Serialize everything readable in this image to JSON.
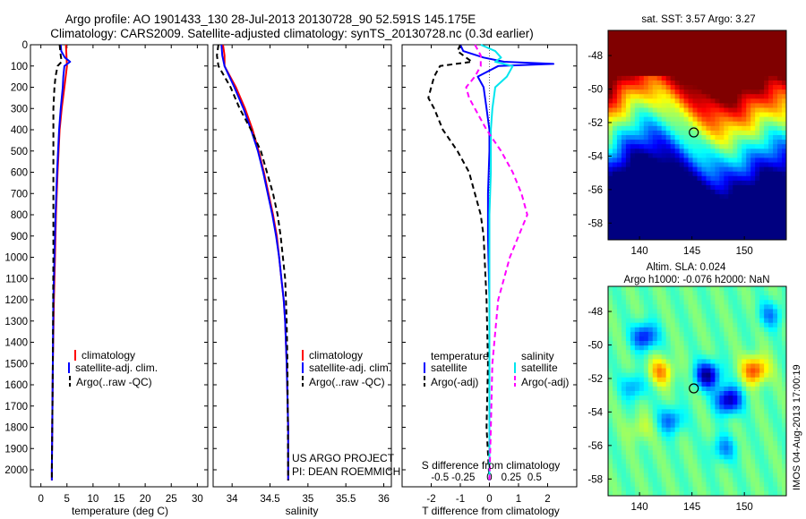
{
  "header": {
    "title_line1": "Argo profile: AO 1901433_130 28-Jul-2013 20130728_90 52.591S 145.175E",
    "title_line2": "Climatology: CARS2009. Satellite-adjusted climatology: synTS_20130728.nc (0.3d earlier)"
  },
  "colors": {
    "climatology": "#ff0000",
    "satellite": "#0000ff",
    "argo": "#000000",
    "salinity_satellite": "#00e5ee",
    "salinity_argo": "#ff00ff"
  },
  "chart_data": [
    {
      "type": "line",
      "xlabel": "temperature (deg C)",
      "xlim": [
        -2,
        32
      ],
      "ylim": [
        2080,
        0
      ],
      "xticks": [
        0,
        5,
        10,
        15,
        20,
        25,
        30
      ],
      "yticks": [
        0,
        100,
        200,
        300,
        400,
        500,
        600,
        700,
        800,
        900,
        1000,
        1100,
        1200,
        1300,
        1400,
        1500,
        1600,
        1700,
        1800,
        1900,
        2000
      ],
      "legend": [
        "climatology",
        "satellite-adj. clim.",
        "Argo(..raw -QC)"
      ],
      "series": [
        {
          "name": "climatology",
          "color": "#ff0000",
          "style": "solid",
          "depth": [
            0,
            50,
            100,
            200,
            300,
            400,
            600,
            800,
            1000,
            1200,
            1500,
            2000,
            2050
          ],
          "values": [
            4.8,
            4.9,
            5.0,
            4.5,
            4.0,
            3.6,
            3.2,
            2.9,
            2.7,
            2.5,
            2.3,
            2.1,
            2.1
          ]
        },
        {
          "name": "satellite-adj. clim.",
          "color": "#0000ff",
          "style": "solid",
          "depth": [
            0,
            30,
            60,
            80,
            100,
            150,
            200,
            300,
            400,
            600,
            800,
            1000,
            1200,
            1500,
            2000,
            2050
          ],
          "values": [
            3.8,
            3.9,
            4.6,
            5.6,
            4.5,
            4.3,
            4.2,
            3.8,
            3.5,
            3.1,
            2.8,
            2.6,
            2.4,
            2.3,
            2.1,
            2.1
          ]
        },
        {
          "name": "Argo(..raw -QC)",
          "color": "#000000",
          "style": "dash",
          "depth": [
            0,
            50,
            80,
            100,
            150,
            200,
            300,
            400,
            600,
            800,
            1000,
            1500,
            2000,
            2050
          ],
          "values": [
            3.6,
            3.8,
            4.0,
            3.2,
            2.8,
            2.6,
            2.4,
            2.4,
            2.4,
            2.4,
            2.4,
            2.3,
            2.1,
            2.1
          ]
        }
      ]
    },
    {
      "type": "line",
      "xlabel": "salinity",
      "xlim": [
        33.75,
        36.1
      ],
      "ylim": [
        2080,
        0
      ],
      "xticks": [
        34,
        34.5,
        35,
        35.5,
        36
      ],
      "legend": [
        "climatology",
        "satellite-adj. clim.",
        "Argo(..raw -QC)"
      ],
      "annotation": [
        "US ARGO PROJECT",
        "PI: DEAN ROEMMICH"
      ],
      "series": [
        {
          "name": "climatology",
          "color": "#ff0000",
          "style": "solid",
          "depth": [
            0,
            50,
            100,
            200,
            300,
            400,
            500,
            600,
            700,
            800,
            900,
            1000,
            1100,
            1200,
            1300,
            1500,
            1800,
            2050
          ],
          "values": [
            33.88,
            33.9,
            33.9,
            34.05,
            34.17,
            34.27,
            34.35,
            34.42,
            34.48,
            34.54,
            34.59,
            34.62,
            34.65,
            34.68,
            34.7,
            34.72,
            34.74,
            34.74
          ]
        },
        {
          "name": "satellite-adj. clim.",
          "color": "#0000ff",
          "style": "solid",
          "depth": [
            0,
            50,
            100,
            200,
            300,
            400,
            500,
            600,
            700,
            800,
            900,
            1000,
            1100,
            1200,
            1300,
            1500,
            1800,
            2050
          ],
          "values": [
            33.86,
            33.87,
            33.9,
            34.03,
            34.15,
            34.25,
            34.34,
            34.41,
            34.47,
            34.53,
            34.58,
            34.62,
            34.65,
            34.68,
            34.7,
            34.72,
            34.74,
            34.74
          ]
        },
        {
          "name": "Argo(..raw -QC)",
          "color": "#000000",
          "style": "dash",
          "depth": [
            0,
            50,
            100,
            150,
            200,
            300,
            400,
            500,
            600,
            700,
            800,
            900,
            1000,
            1100,
            1200,
            1300,
            1500,
            2050
          ],
          "values": [
            33.82,
            33.8,
            33.82,
            33.9,
            33.98,
            34.1,
            34.25,
            34.38,
            34.46,
            34.54,
            34.6,
            34.64,
            34.67,
            34.7,
            34.71,
            34.72,
            34.73,
            34.74
          ]
        }
      ]
    },
    {
      "type": "line",
      "xlabel": "T difference from climatology",
      "xlabel_top": "S difference from climatology",
      "xlim": [
        -3,
        3
      ],
      "ylim": [
        2080,
        0
      ],
      "xticks": [
        -2,
        -1,
        0,
        1,
        2
      ],
      "sticks": [
        {
          "x": -1.7,
          "label": "-0.5"
        },
        {
          "x": -0.9,
          "label": "-0.25"
        },
        {
          "x": 0.0,
          "label": "0"
        },
        {
          "x": 0.75,
          "label": "0.25"
        },
        {
          "x": 1.55,
          "label": "0.5"
        }
      ],
      "legend_temperature": {
        "title": "temperature",
        "items": [
          "satellite",
          "Argo(-adj)"
        ]
      },
      "legend_salinity": {
        "title": "salinity",
        "items": [
          "satellite",
          "Argo(-adj)"
        ]
      },
      "series": [
        {
          "name": "T satellite",
          "color": "#0000ff",
          "style": "solid",
          "depth": [
            0,
            30,
            60,
            80,
            90,
            100,
            150,
            200,
            300,
            400,
            500,
            700,
            900,
            1200,
            1500,
            2050
          ],
          "values": [
            -1.0,
            -0.9,
            -0.2,
            0.5,
            2.2,
            0.3,
            -0.4,
            -0.2,
            -0.1,
            0.0,
            0.0,
            -0.05,
            -0.05,
            0.0,
            0.0,
            0.0
          ]
        },
        {
          "name": "T Argo(-adj)",
          "color": "#000000",
          "style": "dash",
          "depth": [
            0,
            30,
            60,
            80,
            100,
            150,
            200,
            250,
            300,
            400,
            500,
            600,
            700,
            800,
            900,
            1200,
            1500,
            1800,
            2050
          ],
          "values": [
            -1.0,
            -1.1,
            -0.8,
            -0.6,
            -1.7,
            -1.9,
            -2.0,
            -2.1,
            -1.9,
            -1.6,
            -1.1,
            -0.7,
            -0.5,
            -0.3,
            -0.2,
            -0.1,
            -0.05,
            -0.1,
            0.0
          ]
        },
        {
          "name": "S satellite",
          "color": "#00e5ee",
          "style": "solid",
          "depth": [
            0,
            30,
            60,
            80,
            100,
            150,
            200,
            300,
            400,
            600,
            800,
            1200,
            2050
          ],
          "values": [
            -0.3,
            0.2,
            0.4,
            0.2,
            0.8,
            0.6,
            0.2,
            0.1,
            0.05,
            0.05,
            0.0,
            0.0,
            0.0
          ]
        },
        {
          "name": "S Argo(-adj)",
          "color": "#ff00ff",
          "style": "dash",
          "depth": [
            0,
            50,
            100,
            150,
            200,
            250,
            300,
            400,
            500,
            600,
            700,
            800,
            900,
            1000,
            1200,
            1500,
            1800,
            2050
          ],
          "values": [
            -0.5,
            -0.3,
            -0.3,
            -0.5,
            -0.8,
            -0.7,
            -0.5,
            -0.1,
            0.4,
            0.8,
            1.1,
            1.3,
            1.0,
            0.7,
            0.3,
            0.1,
            0.05,
            0.0
          ]
        }
      ]
    },
    {
      "type": "heatmap",
      "title": "sat. SST: 3.57 Argo: 3.27",
      "xlim": [
        137,
        154
      ],
      "ylim": [
        -59,
        -46.5
      ],
      "xticks": [
        140,
        145,
        150
      ],
      "yticks": [
        -48,
        -50,
        -52,
        -54,
        -56,
        -58
      ],
      "marker": {
        "lon": 145.175,
        "lat": -52.591
      }
    },
    {
      "type": "heatmap",
      "title": "Altim. SLA: 0.024",
      "subtitle": "Argo h1000: -0.076 h2000: NaN",
      "xlim": [
        137,
        154
      ],
      "ylim": [
        -59,
        -46.5
      ],
      "xticks": [
        140,
        145,
        150
      ],
      "yticks": [
        -48,
        -50,
        -52,
        -54,
        -56,
        -58
      ],
      "marker": {
        "lon": 145.175,
        "lat": -52.591
      },
      "side_label": "IMOS 04-Aug-2013 17:00:19"
    }
  ]
}
